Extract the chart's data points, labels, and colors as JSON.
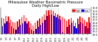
{
  "title": "Milwaukee Weather Barometric Pressure",
  "subtitle": "Daily High/Low",
  "bar_high_color": "#ff0000",
  "bar_low_color": "#0000ff",
  "background_color": "#ffffff",
  "legend_high_color": "#ff0000",
  "legend_low_color": "#0000ff",
  "ylim": [
    29.0,
    30.8
  ],
  "ytick_values": [
    29.0,
    29.2,
    29.4,
    29.6,
    29.8,
    30.0,
    30.2,
    30.4,
    30.6,
    30.8
  ],
  "dates": [
    "1/1",
    "1/2",
    "1/3",
    "1/4",
    "1/5",
    "1/6",
    "1/7",
    "1/8",
    "1/9",
    "1/10",
    "1/11",
    "1/12",
    "1/13",
    "1/14",
    "1/15",
    "1/16",
    "1/17",
    "1/18",
    "1/19",
    "1/20",
    "1/21",
    "1/22",
    "1/23",
    "1/24",
    "1/25",
    "1/26",
    "1/27",
    "1/28",
    "1/29",
    "1/30",
    "1/31",
    "2/1",
    "2/2",
    "2/3",
    "2/4",
    "2/5",
    "2/6",
    "2/7",
    "2/8",
    "2/9"
  ],
  "highs": [
    30.12,
    30.05,
    30.22,
    30.18,
    29.95,
    29.82,
    29.75,
    29.88,
    30.02,
    30.15,
    30.28,
    30.1,
    29.85,
    29.7,
    29.6,
    29.75,
    29.9,
    30.05,
    30.18,
    30.35,
    30.6,
    30.62,
    30.65,
    30.55,
    30.45,
    30.35,
    30.25,
    30.15,
    30.05,
    29.9,
    30.0,
    30.12,
    29.9,
    29.75,
    30.05,
    30.2,
    30.1,
    29.95,
    29.8,
    30.15
  ],
  "lows": [
    29.55,
    29.72,
    29.88,
    29.78,
    29.52,
    29.38,
    29.32,
    29.48,
    29.62,
    29.72,
    29.85,
    29.7,
    29.45,
    29.3,
    29.22,
    29.35,
    29.5,
    29.65,
    29.78,
    29.95,
    30.22,
    30.28,
    30.35,
    30.25,
    30.15,
    30.05,
    29.95,
    29.12,
    29.02,
    29.5,
    29.65,
    29.78,
    29.55,
    29.4,
    29.68,
    29.82,
    29.72,
    29.55,
    29.4,
    29.75
  ],
  "dotted_indices": [
    20,
    21,
    22,
    23,
    24,
    25
  ],
  "title_fontsize": 3.8,
  "tick_fontsize": 2.5,
  "legend_fontsize": 2.5
}
